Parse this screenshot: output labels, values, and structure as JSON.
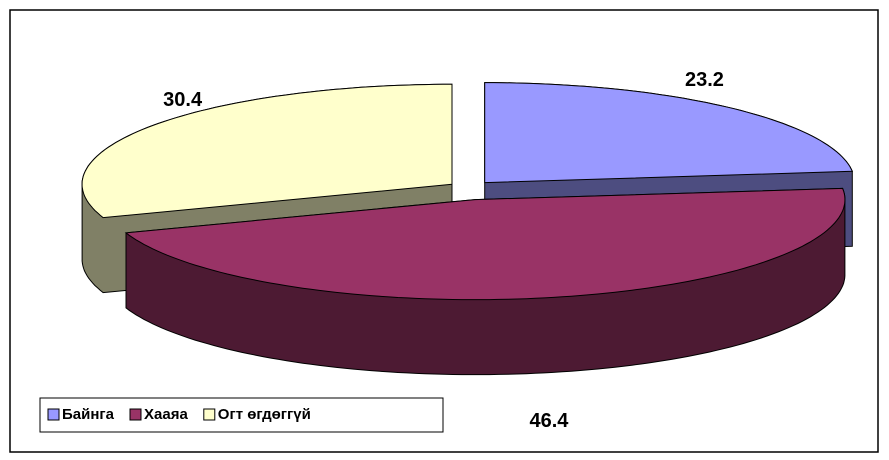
{
  "chart_data": {
    "type": "pie3d",
    "categories": [
      "Байнга",
      "Хааяа",
      "Огт өгдөггүй"
    ],
    "values": [
      23.2,
      46.4,
      30.4
    ],
    "colors": [
      "#9999ff",
      "#993366",
      "#ffffcc"
    ],
    "legend": "bottom-left"
  }
}
